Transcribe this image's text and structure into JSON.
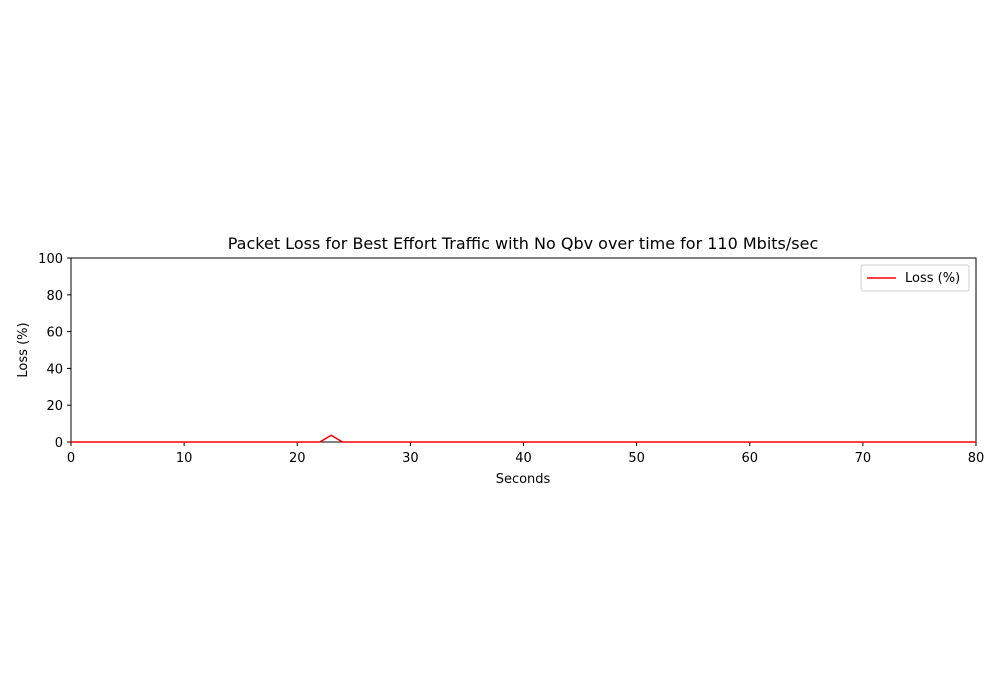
{
  "chart_data": {
    "type": "line",
    "title": "Packet Loss for Best Effort Traffic with No Qbv over time for 110 Mbits/sec",
    "xlabel": "Seconds",
    "ylabel": "Loss (%)",
    "xlim": [
      0,
      80
    ],
    "ylim": [
      0,
      100
    ],
    "xticks": [
      0,
      10,
      20,
      30,
      40,
      50,
      60,
      70,
      80
    ],
    "yticks": [
      0,
      20,
      40,
      60,
      80,
      100
    ],
    "grid": false,
    "legend_position": "top-right",
    "series": [
      {
        "name": "Loss (%)",
        "color": "#ff0000",
        "x": [
          0,
          22,
          23,
          24,
          80
        ],
        "y": [
          0,
          0,
          3.7,
          0,
          0
        ]
      }
    ]
  }
}
